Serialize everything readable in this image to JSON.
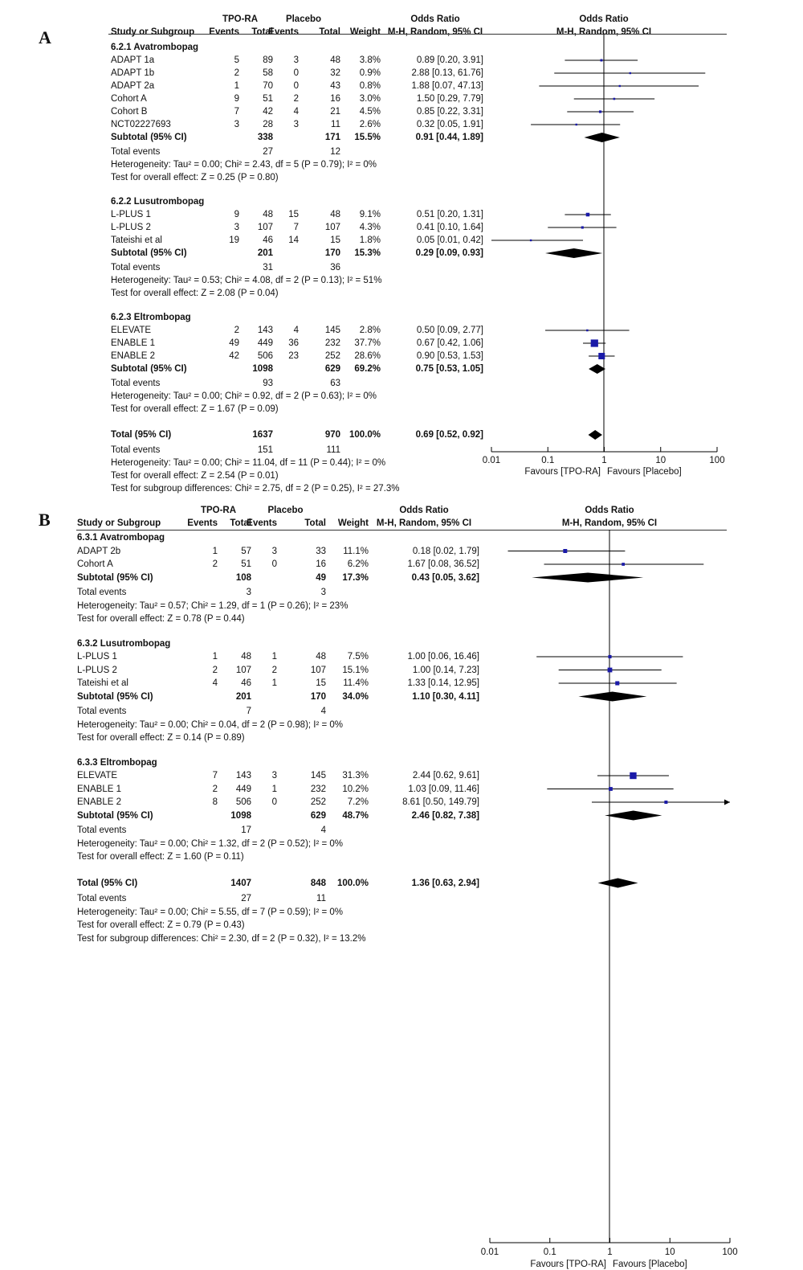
{
  "panels": [
    {
      "label": "A",
      "header": {
        "study": "Study or Subgroup",
        "exp_group": "TPO-RA",
        "ctrl_group": "Placebo",
        "events": "Events",
        "total": "Total",
        "weight": "Weight",
        "or_title": "Odds Ratio",
        "or_method": "M-H, Random, 95% CI",
        "plot_title": "Odds Ratio",
        "plot_method": "M-H, Random, 95% CI"
      },
      "subgroups": [
        {
          "title": "6.2.1 Avatrombopag",
          "studies": [
            {
              "name": "ADAPT 1a",
              "e_events": "5",
              "e_total": "89",
              "c_events": "3",
              "c_total": "48",
              "weight": "3.8%",
              "ci_text": "0.89 [0.20, 3.91]",
              "or": 0.89,
              "lo": 0.2,
              "hi": 3.91
            },
            {
              "name": "ADAPT 1b",
              "e_events": "2",
              "e_total": "58",
              "c_events": "0",
              "c_total": "32",
              "weight": "0.9%",
              "ci_text": "2.88 [0.13, 61.76]",
              "or": 2.88,
              "lo": 0.13,
              "hi": 61.76
            },
            {
              "name": "ADAPT 2a",
              "e_events": "1",
              "e_total": "70",
              "c_events": "0",
              "c_total": "43",
              "weight": "0.8%",
              "ci_text": "1.88 [0.07, 47.13]",
              "or": 1.88,
              "lo": 0.07,
              "hi": 47.13
            },
            {
              "name": "Cohort A",
              "e_events": "9",
              "e_total": "51",
              "c_events": "2",
              "c_total": "16",
              "weight": "3.0%",
              "ci_text": "1.50 [0.29, 7.79]",
              "or": 1.5,
              "lo": 0.29,
              "hi": 7.79
            },
            {
              "name": "Cohort B",
              "e_events": "7",
              "e_total": "42",
              "c_events": "4",
              "c_total": "21",
              "weight": "4.5%",
              "ci_text": "0.85 [0.22, 3.31]",
              "or": 0.85,
              "lo": 0.22,
              "hi": 3.31
            },
            {
              "name": "NCT02227693",
              "e_events": "3",
              "e_total": "28",
              "c_events": "3",
              "c_total": "11",
              "weight": "2.6%",
              "ci_text": "0.32 [0.05, 1.91]",
              "or": 0.32,
              "lo": 0.05,
              "hi": 1.91
            }
          ],
          "subtotal": {
            "label": "Subtotal (95% CI)",
            "e_total": "338",
            "c_total": "171",
            "weight": "15.5%",
            "ci_text": "0.91 [0.44, 1.89]",
            "or": 0.91,
            "lo": 0.44,
            "hi": 1.89
          },
          "total_events": {
            "label": "Total events",
            "e": "27",
            "c": "12"
          },
          "heterogeneity": "Heterogeneity: Tau² = 0.00; Chi² = 2.43, df = 5 (P = 0.79); I² = 0%",
          "overall": "Test for overall effect: Z = 0.25 (P = 0.80)"
        },
        {
          "title": "6.2.2 Lusutrombopag",
          "studies": [
            {
              "name": "L-PLUS 1",
              "e_events": "9",
              "e_total": "48",
              "c_events": "15",
              "c_total": "48",
              "weight": "9.1%",
              "ci_text": "0.51 [0.20, 1.31]",
              "or": 0.51,
              "lo": 0.2,
              "hi": 1.31
            },
            {
              "name": "L-PLUS 2",
              "e_events": "3",
              "e_total": "107",
              "c_events": "7",
              "c_total": "107",
              "weight": "4.3%",
              "ci_text": "0.41 [0.10, 1.64]",
              "or": 0.41,
              "lo": 0.1,
              "hi": 1.64
            },
            {
              "name": "Tateishi et al",
              "e_events": "19",
              "e_total": "46",
              "c_events": "14",
              "c_total": "15",
              "weight": "1.8%",
              "ci_text": "0.05 [0.01, 0.42]",
              "or": 0.05,
              "lo": 0.01,
              "hi": 0.42
            }
          ],
          "subtotal": {
            "label": "Subtotal (95% CI)",
            "e_total": "201",
            "c_total": "170",
            "weight": "15.3%",
            "ci_text": "0.29 [0.09, 0.93]",
            "or": 0.29,
            "lo": 0.09,
            "hi": 0.93
          },
          "total_events": {
            "label": "Total events",
            "e": "31",
            "c": "36"
          },
          "heterogeneity": "Heterogeneity: Tau² = 0.53; Chi² = 4.08, df = 2 (P = 0.13); I² = 51%",
          "overall": "Test for overall effect: Z = 2.08 (P = 0.04)"
        },
        {
          "title": "6.2.3 Eltrombopag",
          "studies": [
            {
              "name": "ELEVATE",
              "e_events": "2",
              "e_total": "143",
              "c_events": "4",
              "c_total": "145",
              "weight": "2.8%",
              "ci_text": "0.50 [0.09, 2.77]",
              "or": 0.5,
              "lo": 0.09,
              "hi": 2.77
            },
            {
              "name": "ENABLE 1",
              "e_events": "49",
              "e_total": "449",
              "c_events": "36",
              "c_total": "232",
              "weight": "37.7%",
              "ci_text": "0.67 [0.42, 1.06]",
              "or": 0.67,
              "lo": 0.42,
              "hi": 1.06
            },
            {
              "name": "ENABLE 2",
              "e_events": "42",
              "e_total": "506",
              "c_events": "23",
              "c_total": "252",
              "weight": "28.6%",
              "ci_text": "0.90 [0.53, 1.53]",
              "or": 0.9,
              "lo": 0.53,
              "hi": 1.53
            }
          ],
          "subtotal": {
            "label": "Subtotal (95% CI)",
            "e_total": "1098",
            "c_total": "629",
            "weight": "69.2%",
            "ci_text": "0.75 [0.53, 1.05]",
            "or": 0.75,
            "lo": 0.53,
            "hi": 1.05
          },
          "total_events": {
            "label": "Total events",
            "e": "93",
            "c": "63"
          },
          "heterogeneity": "Heterogeneity: Tau² = 0.00; Chi² = 0.92, df = 2 (P = 0.63); I² = 0%",
          "overall": "Test for overall effect: Z = 1.67 (P = 0.09)"
        }
      ],
      "total": {
        "label": "Total (95% CI)",
        "e_total": "1637",
        "c_total": "970",
        "weight": "100.0%",
        "ci_text": "0.69 [0.52, 0.92]",
        "or": 0.69,
        "lo": 0.52,
        "hi": 0.92
      },
      "total_events": {
        "label": "Total events",
        "e": "151",
        "c": "111"
      },
      "heterogeneity": "Heterogeneity: Tau² = 0.00; Chi² = 11.04, df = 11 (P = 0.44); I² = 0%",
      "overall": "Test for overall effect: Z = 2.54 (P = 0.01)",
      "subgroup_diff": "Test for subgroup differences: Chi² = 2.75, df = 2 (P = 0.25), I² = 27.3%",
      "axis": {
        "ticks": [
          "0.01",
          "0.1",
          "1",
          "10",
          "100"
        ],
        "favours_left": "Favours [TPO-RA]",
        "favours_right": "Favours [Placebo]"
      }
    },
    {
      "label": "B",
      "header": {
        "study": "Study or Subgroup",
        "exp_group": "TPO-RA",
        "ctrl_group": "Placebo",
        "events": "Events",
        "total": "Total",
        "weight": "Weight",
        "or_title": "Odds Ratio",
        "or_method": "M-H, Random, 95% CI",
        "plot_title": "Odds Ratio",
        "plot_method": "M-H, Random, 95% CI"
      },
      "subgroups": [
        {
          "title": "6.3.1 Avatrombopag",
          "studies": [
            {
              "name": "ADAPT 2b",
              "e_events": "1",
              "e_total": "57",
              "c_events": "3",
              "c_total": "33",
              "weight": "11.1%",
              "ci_text": "0.18 [0.02, 1.79]",
              "or": 0.18,
              "lo": 0.02,
              "hi": 1.79
            },
            {
              "name": "Cohort A",
              "e_events": "2",
              "e_total": "51",
              "c_events": "0",
              "c_total": "16",
              "weight": "6.2%",
              "ci_text": "1.67 [0.08, 36.52]",
              "or": 1.67,
              "lo": 0.08,
              "hi": 36.52
            }
          ],
          "subtotal": {
            "label": "Subtotal (95% CI)",
            "e_total": "108",
            "c_total": "49",
            "weight": "17.3%",
            "ci_text": "0.43 [0.05, 3.62]",
            "or": 0.43,
            "lo": 0.05,
            "hi": 3.62
          },
          "total_events": {
            "label": "Total events",
            "e": "3",
            "c": "3"
          },
          "heterogeneity": "Heterogeneity: Tau² = 0.57; Chi² = 1.29, df = 1 (P = 0.26); I² = 23%",
          "overall": "Test for overall effect: Z = 0.78 (P = 0.44)"
        },
        {
          "title": "6.3.2 Lusutrombopag",
          "studies": [
            {
              "name": "L-PLUS 1",
              "e_events": "1",
              "e_total": "48",
              "c_events": "1",
              "c_total": "48",
              "weight": "7.5%",
              "ci_text": "1.00 [0.06, 16.46]",
              "or": 1.0,
              "lo": 0.06,
              "hi": 16.46
            },
            {
              "name": "L-PLUS 2",
              "e_events": "2",
              "e_total": "107",
              "c_events": "2",
              "c_total": "107",
              "weight": "15.1%",
              "ci_text": "1.00 [0.14, 7.23]",
              "or": 1.0,
              "lo": 0.14,
              "hi": 7.23
            },
            {
              "name": "Tateishi et al",
              "e_events": "4",
              "e_total": "46",
              "c_events": "1",
              "c_total": "15",
              "weight": "11.4%",
              "ci_text": "1.33 [0.14, 12.95]",
              "or": 1.33,
              "lo": 0.14,
              "hi": 12.95
            }
          ],
          "subtotal": {
            "label": "Subtotal (95% CI)",
            "e_total": "201",
            "c_total": "170",
            "weight": "34.0%",
            "ci_text": "1.10 [0.30, 4.11]",
            "or": 1.1,
            "lo": 0.3,
            "hi": 4.11
          },
          "total_events": {
            "label": "Total events",
            "e": "7",
            "c": "4"
          },
          "heterogeneity": "Heterogeneity: Tau² = 0.00; Chi² = 0.04, df = 2 (P = 0.98); I² = 0%",
          "overall": "Test for overall effect: Z = 0.14 (P = 0.89)"
        },
        {
          "title": "6.3.3 Eltrombopag",
          "studies": [
            {
              "name": "ELEVATE",
              "e_events": "7",
              "e_total": "143",
              "c_events": "3",
              "c_total": "145",
              "weight": "31.3%",
              "ci_text": "2.44 [0.62, 9.61]",
              "or": 2.44,
              "lo": 0.62,
              "hi": 9.61
            },
            {
              "name": "ENABLE 1",
              "e_events": "2",
              "e_total": "449",
              "c_events": "1",
              "c_total": "232",
              "weight": "10.2%",
              "ci_text": "1.03 [0.09, 11.46]",
              "or": 1.03,
              "lo": 0.09,
              "hi": 11.46
            },
            {
              "name": "ENABLE 2",
              "e_events": "8",
              "e_total": "506",
              "c_events": "0",
              "c_total": "252",
              "weight": "7.2%",
              "ci_text": "8.61 [0.50, 149.79]",
              "or": 8.61,
              "lo": 0.5,
              "hi": 149.79
            }
          ],
          "subtotal": {
            "label": "Subtotal (95% CI)",
            "e_total": "1098",
            "c_total": "629",
            "weight": "48.7%",
            "ci_text": "2.46 [0.82, 7.38]",
            "or": 2.46,
            "lo": 0.82,
            "hi": 7.38
          },
          "total_events": {
            "label": "Total events",
            "e": "17",
            "c": "4"
          },
          "heterogeneity": "Heterogeneity: Tau² = 0.00; Chi² = 1.32, df = 2 (P = 0.52); I² = 0%",
          "overall": "Test for overall effect: Z = 1.60 (P = 0.11)"
        }
      ],
      "total": {
        "label": "Total (95% CI)",
        "e_total": "1407",
        "c_total": "848",
        "weight": "100.0%",
        "ci_text": "1.36 [0.63, 2.94]",
        "or": 1.36,
        "lo": 0.63,
        "hi": 2.94
      },
      "total_events": {
        "label": "Total events",
        "e": "27",
        "c": "11"
      },
      "heterogeneity": "Heterogeneity: Tau² = 0.00; Chi² = 5.55, df = 7 (P = 0.59); I² = 0%",
      "overall": "Test for overall effect: Z = 0.79 (P = 0.43)",
      "subgroup_diff": "Test for subgroup differences: Chi² = 2.30, df = 2 (P = 0.32), I² = 13.2%",
      "axis": {
        "ticks": [
          "0.01",
          "0.1",
          "1",
          "10",
          "100"
        ],
        "favours_left": "Favours [TPO-RA]",
        "favours_right": "Favours [Placebo]"
      }
    }
  ],
  "chart_data": [
    {
      "type": "scatter",
      "subtype": "forest-plot",
      "x_scale": "log",
      "xlim": [
        0.01,
        100
      ],
      "series": [
        {
          "name": "6.2.1 Avatrombopag",
          "x": [
            0.89,
            2.88,
            1.88,
            1.5,
            0.85,
            0.32
          ]
        },
        {
          "name": "6.2.2 Lusutrombopag",
          "x": [
            0.51,
            0.41,
            0.05
          ]
        },
        {
          "name": "6.2.3 Eltrombopag",
          "x": [
            0.5,
            0.67,
            0.9
          ]
        }
      ],
      "pooled": [
        0.91,
        0.29,
        0.75,
        0.69
      ]
    },
    {
      "type": "scatter",
      "subtype": "forest-plot",
      "x_scale": "log",
      "xlim": [
        0.01,
        100
      ],
      "series": [
        {
          "name": "6.3.1 Avatrombopag",
          "x": [
            0.18,
            1.67
          ]
        },
        {
          "name": "6.3.2 Lusutrombopag",
          "x": [
            1.0,
            1.0,
            1.33
          ]
        },
        {
          "name": "6.3.3 Eltrombopag",
          "x": [
            2.44,
            1.03,
            8.61
          ]
        }
      ],
      "pooled": [
        0.43,
        1.1,
        2.46,
        1.36
      ]
    }
  ],
  "colors": {
    "marker": "#1a1aa8",
    "diamond": "#000000",
    "line": "#000000"
  }
}
